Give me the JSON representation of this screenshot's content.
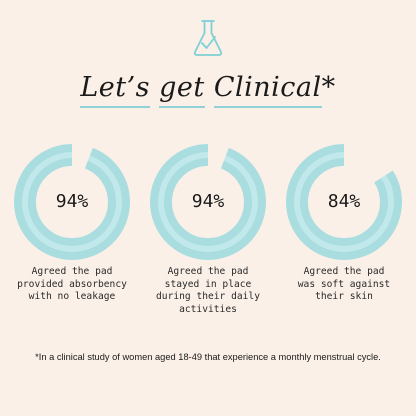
{
  "header": {
    "icon": "flask-check-icon",
    "icon_color": "#7fd0d4",
    "title_part1": "Let’s",
    "title_part2": "get",
    "title_part3": "Clinical",
    "title_suffix": "*"
  },
  "stats": [
    {
      "value": "94%",
      "fill": 0.94,
      "caption": [
        "Agreed the pad",
        "provided absorbency",
        "with no leakage"
      ]
    },
    {
      "value": "94%",
      "fill": 0.94,
      "caption": [
        "Agreed the pad",
        "stayed in place",
        "during their daily",
        "activities"
      ]
    },
    {
      "value": "84%",
      "fill": 0.84,
      "caption": [
        "Agreed the pad",
        "was soft against",
        "their skin"
      ]
    }
  ],
  "footnote": "*In a clinical study of women aged 18-49 that experience a monthly menstrual cycle.",
  "colors": {
    "background": "#faf0e8",
    "ring": "#a9dde0",
    "ring_highlight": "#d6f1f2",
    "accent": "#8fd3d6"
  }
}
